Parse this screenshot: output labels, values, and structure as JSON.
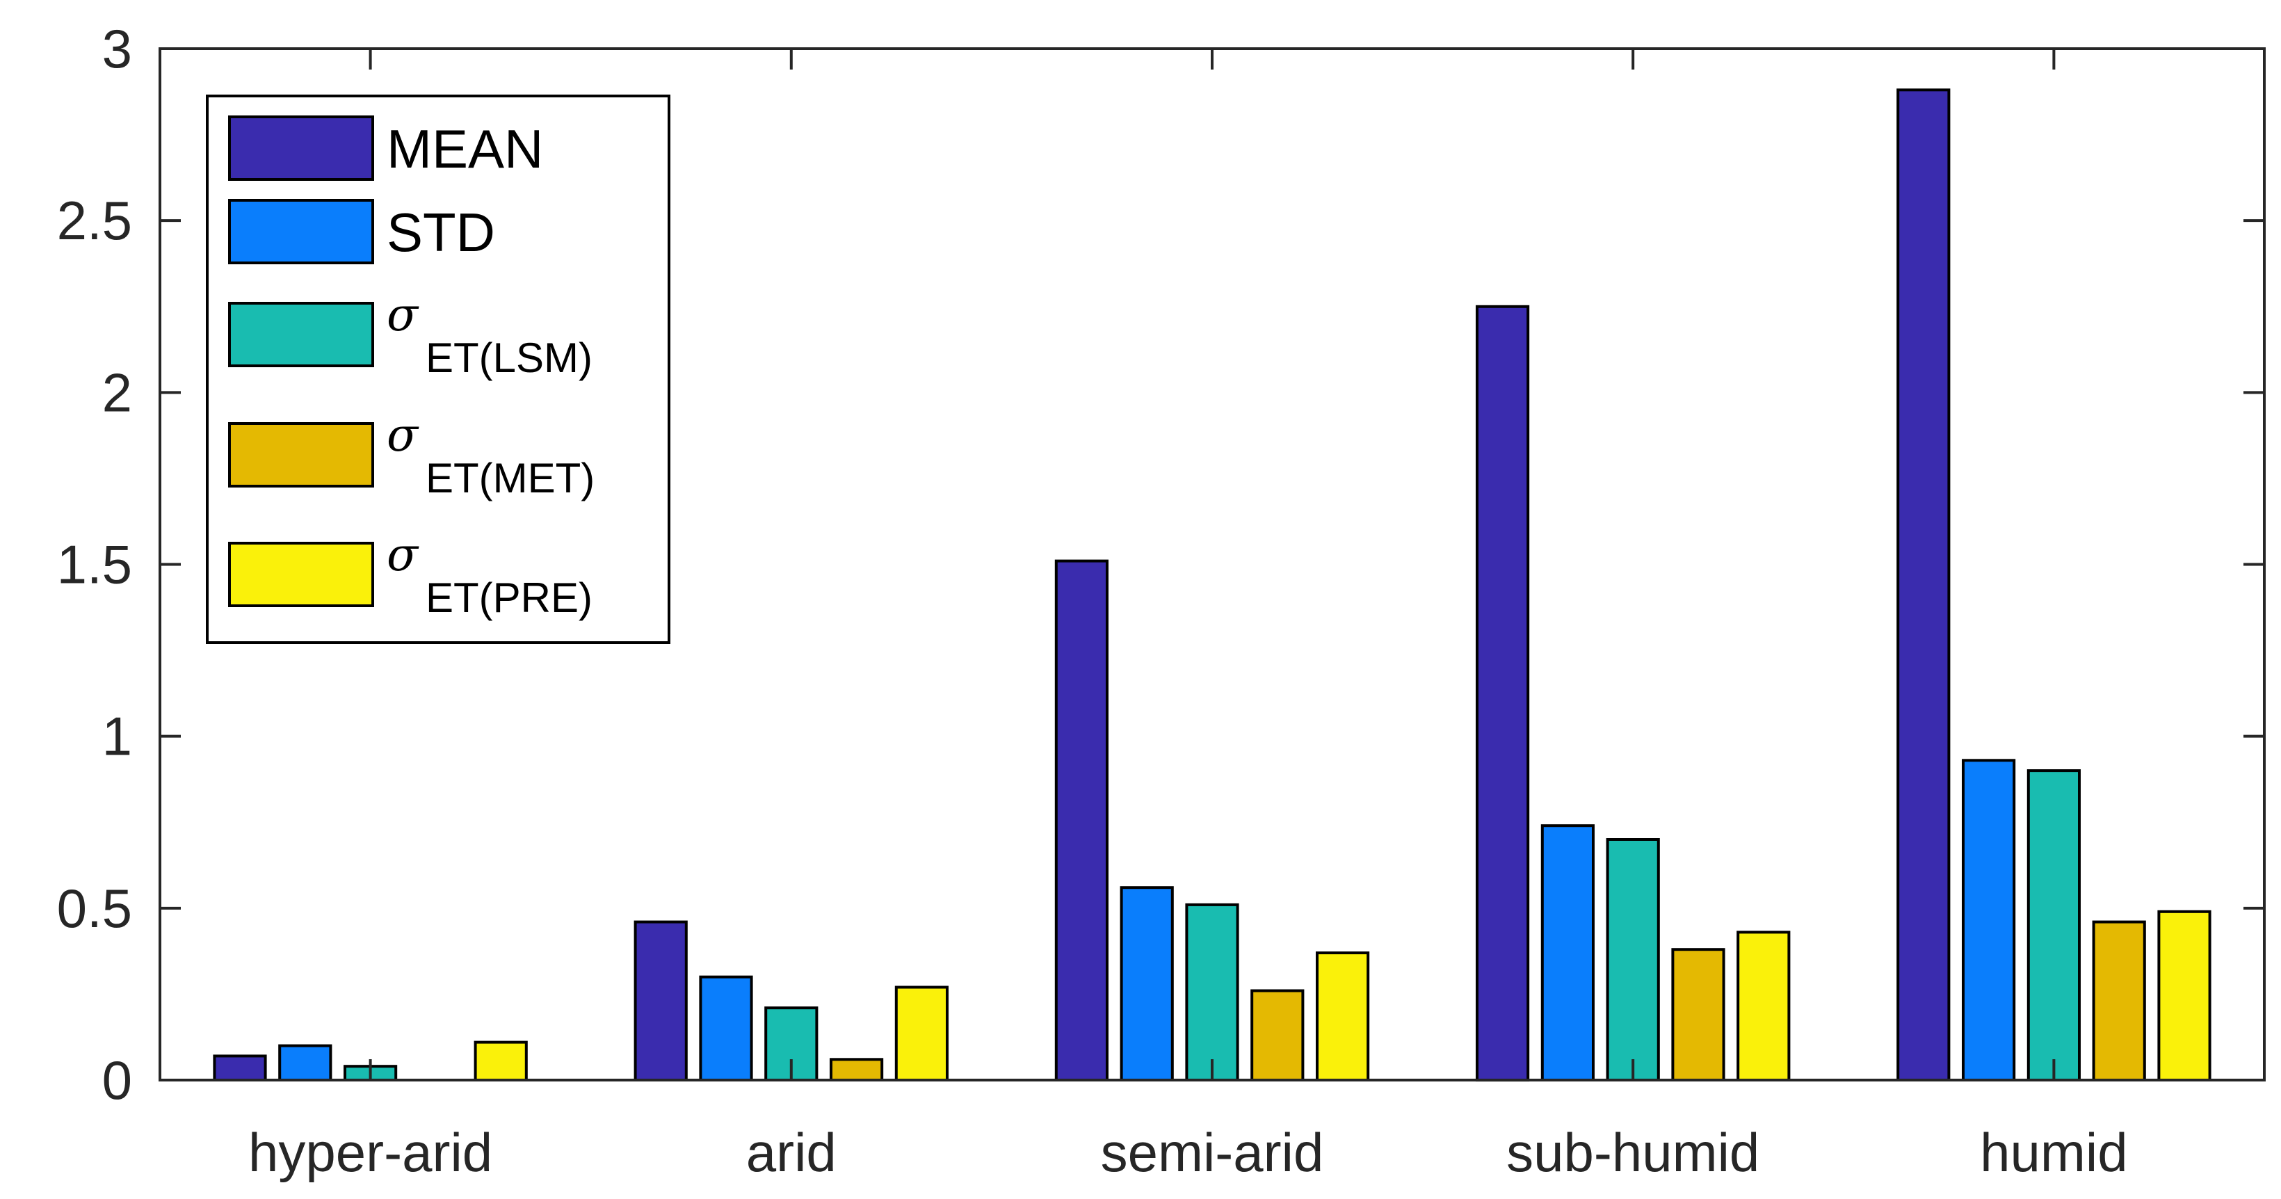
{
  "chart_data": {
    "type": "bar",
    "title": "",
    "xlabel": "",
    "ylabel": "",
    "ylim": [
      0,
      3
    ],
    "yticks": [
      "0",
      "0.5",
      "1",
      "1.5",
      "2",
      "2.5",
      "3"
    ],
    "ytick_values": [
      0,
      0.5,
      1,
      1.5,
      2,
      2.5,
      3
    ],
    "grid": false,
    "legend_position": "top-left",
    "categories": [
      "hyper-arid",
      "arid",
      "semi-arid",
      "sub-humid",
      "humid"
    ],
    "series": [
      {
        "key": "mean",
        "name": "MEAN",
        "color": "#3a2cae",
        "values": [
          0.07,
          0.46,
          1.51,
          2.25,
          2.88
        ]
      },
      {
        "key": "std",
        "name": "STD",
        "color": "#0a7efc",
        "values": [
          0.1,
          0.3,
          0.56,
          0.74,
          0.93
        ]
      },
      {
        "key": "lsm",
        "name": "σ",
        "subscript": "ET(LSM)",
        "color": "#19bcb0",
        "values": [
          0.04,
          0.21,
          0.51,
          0.7,
          0.9
        ]
      },
      {
        "key": "met",
        "name": "σ",
        "subscript": "ET(MET)",
        "color": "#e4b902",
        "values": [
          0.0,
          0.06,
          0.26,
          0.38,
          0.46
        ]
      },
      {
        "key": "pre",
        "name": "σ",
        "subscript": "ET(PRE)",
        "color": "#faf10a",
        "values": [
          0.11,
          0.27,
          0.37,
          0.43,
          0.49
        ]
      }
    ]
  }
}
